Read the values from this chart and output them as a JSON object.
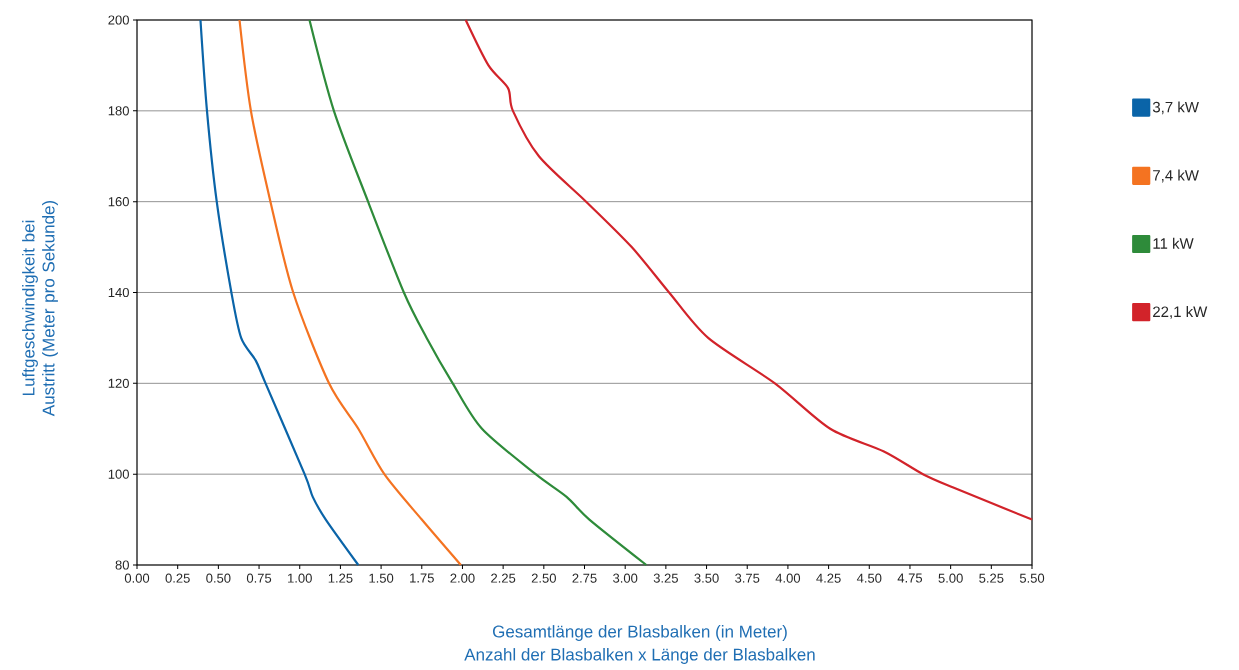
{
  "chart_data": {
    "type": "line",
    "xlabel": "Gesamtlänge der Blasbalken (in Meter)",
    "ylabel": "Luftgeschwindigkeit bei Austritt (Meter pro Sekunde)",
    "annotations": [
      "Anzahl der Blasbalken x Länge der Blasbalken"
    ],
    "series": [
      {
        "name": "3,7 kW",
        "color": "#0a64a8",
        "x": [
          0.39,
          0.43,
          0.49,
          0.58,
          0.64,
          0.73,
          0.79,
          1.03,
          1.08,
          1.16,
          1.36
        ],
        "values": [
          200,
          180,
          160,
          140,
          130,
          125,
          120,
          100,
          95,
          90,
          80
        ]
      },
      {
        "name": "7,4 kW",
        "color": "#f47321",
        "x": [
          0.63,
          0.7,
          0.82,
          0.96,
          1.18,
          1.36,
          1.52,
          1.75,
          1.99
        ],
        "values": [
          200,
          180,
          160,
          140,
          120,
          110,
          100,
          90,
          80
        ]
      },
      {
        "name": "11 kW",
        "color": "#2e8b3a",
        "x": [
          1.06,
          1.21,
          1.42,
          1.64,
          1.78,
          1.94,
          2.12,
          2.45,
          2.64,
          2.78,
          3.13
        ],
        "values": [
          200,
          180,
          160,
          140,
          130,
          120,
          110,
          100,
          95,
          90,
          80
        ]
      },
      {
        "name": "22,1 kW",
        "color": "#d2232a",
        "x": [
          2.02,
          2.16,
          2.28,
          2.31,
          2.47,
          2.76,
          3.04,
          3.27,
          3.51,
          3.92,
          4.26,
          4.59,
          4.83,
          5.02,
          5.5
        ],
        "values": [
          200,
          190,
          185,
          180,
          170,
          160,
          150,
          140,
          130,
          120,
          110,
          105,
          100,
          97,
          90
        ]
      }
    ],
    "xlim": [
      0,
      5.5
    ],
    "ylim": [
      80,
      200
    ],
    "xticks": [
      {
        "value": 0,
        "label": "0.00"
      },
      {
        "value": 0.25,
        "label": "0.25"
      },
      {
        "value": 0.5,
        "label": "0.50"
      },
      {
        "value": 0.75,
        "label": "0.75"
      },
      {
        "value": 1,
        "label": "1.00"
      },
      {
        "value": 1.25,
        "label": "1.25"
      },
      {
        "value": 1.5,
        "label": "1.50"
      },
      {
        "value": 1.75,
        "label": "1.75"
      },
      {
        "value": 2,
        "label": "2.00"
      },
      {
        "value": 2.25,
        "label": "2.25"
      },
      {
        "value": 2.5,
        "label": "2.50"
      },
      {
        "value": 2.75,
        "label": "2.75"
      },
      {
        "value": 3,
        "label": "3.00"
      },
      {
        "value": 3.25,
        "label": "3.25"
      },
      {
        "value": 3.5,
        "label": "3.50"
      },
      {
        "value": 3.75,
        "label": "3.75"
      },
      {
        "value": 4,
        "label": "4.00"
      },
      {
        "value": 4.25,
        "label": "4.25"
      },
      {
        "value": 4.5,
        "label": "4.50"
      },
      {
        "value": 4.75,
        "label": "4.75"
      },
      {
        "value": 5,
        "label": "5.00"
      },
      {
        "value": 5.25,
        "label": "5.25"
      },
      {
        "value": 5.5,
        "label": "5.50"
      }
    ],
    "yticks": [
      80,
      100,
      120,
      140,
      160,
      180,
      200
    ],
    "grid": "y",
    "legend": "right",
    "marker": "none",
    "line_style": "solid"
  }
}
